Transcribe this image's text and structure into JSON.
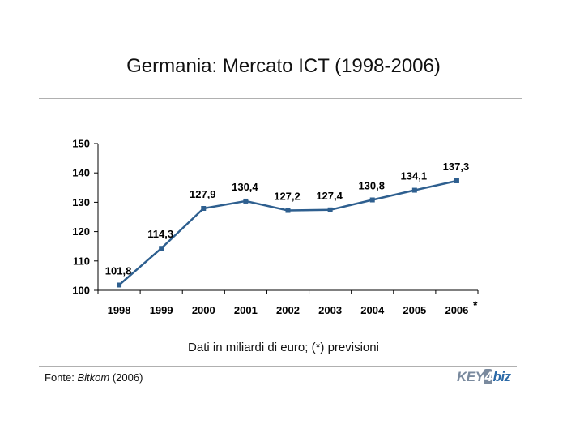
{
  "title": "Germania: Mercato ICT (1998-2006)",
  "subtitle": "Dati in miliardi di euro; (*) previsioni",
  "source": {
    "prefix": "Fonte: ",
    "name": "Bitkom",
    "suffix": " (2006)"
  },
  "logo": {
    "part1": "KEY",
    "part2": "4",
    "part3": "biz"
  },
  "chart_data": {
    "type": "line",
    "categories": [
      "1998",
      "1999",
      "2000",
      "2001",
      "2002",
      "2003",
      "2004",
      "2005",
      "2006"
    ],
    "forecast_marker": "*",
    "series": [
      {
        "values": [
          101.8,
          114.3,
          127.9,
          130.4,
          127.2,
          127.4,
          130.8,
          134.1,
          137.3
        ],
        "labels": [
          "101,8",
          "114,3",
          "127,9",
          "130,4",
          "127,2",
          "127,4",
          "130,8",
          "134,1",
          "137,3"
        ]
      }
    ],
    "ylim": [
      100,
      150
    ],
    "yticks": [
      100,
      110,
      120,
      130,
      140,
      150
    ],
    "grid": false,
    "legend": "none",
    "line_color": "#2e5f8f",
    "marker_color": "#2e5f8f"
  }
}
